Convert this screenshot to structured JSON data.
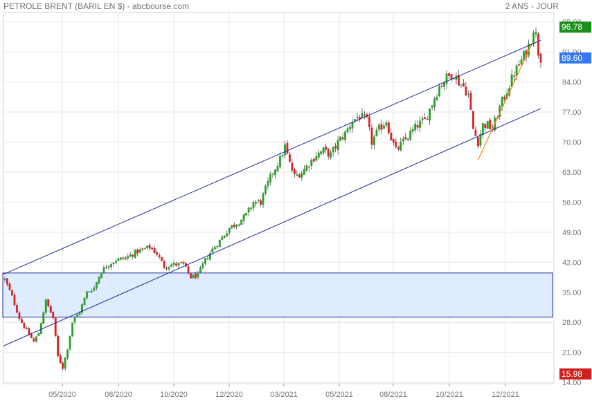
{
  "header": {
    "title": "PETROLE BRENT (BARIL EN $) - abcbourse.com",
    "period": "2 ANS - JOUR"
  },
  "colors": {
    "up": "#2ca02c",
    "down": "#d62728",
    "channel": "#1f2a9c",
    "trend": "#ff8c1a",
    "zone_fill": "#dbeafe",
    "zone_border": "#1f2a9c",
    "grid": "#e6e6e6",
    "badge_high": "#1a8f1a",
    "badge_last": "#3478f6",
    "badge_low": "#d0201e"
  },
  "chart_data": {
    "type": "candlestick",
    "title": "PETROLE BRENT (BARIL EN $)",
    "x_tick_labels": [
      "05/2020",
      "08/2020",
      "10/2020",
      "12/2020",
      "03/2021",
      "05/2021",
      "08/2021",
      "10/2021",
      "12/2021"
    ],
    "y_ticks": [
      14.0,
      21.0,
      28.0,
      35.0,
      42.0,
      49.0,
      56.0,
      63.0,
      70.0,
      77.0,
      84.0,
      91.0,
      98.0
    ],
    "y_tick_labels": [
      "14.00",
      "21.00",
      "28.00",
      "35.00",
      "42.00",
      "49.00",
      "56.00",
      "63.00",
      "70.00",
      "77.00",
      "84.00",
      "91.00",
      "98.00"
    ],
    "ylim": [
      13.7,
      100.2
    ],
    "price_path": [
      [
        0,
        38.0
      ],
      [
        3,
        34.0
      ],
      [
        6,
        29.0
      ],
      [
        9,
        26.0
      ],
      [
        12,
        23.5
      ],
      [
        14,
        25.5
      ],
      [
        17,
        33.0
      ],
      [
        20,
        29.0
      ],
      [
        22,
        20.0
      ],
      [
        24,
        17.5
      ],
      [
        26,
        22.0
      ],
      [
        28,
        28.0
      ],
      [
        31,
        30.5
      ],
      [
        34,
        35.0
      ],
      [
        37,
        36.0
      ],
      [
        40,
        40.0
      ],
      [
        43,
        41.5
      ],
      [
        46,
        42.5
      ],
      [
        50,
        43.0
      ],
      [
        55,
        44.5
      ],
      [
        60,
        45.5
      ],
      [
        63,
        44.0
      ],
      [
        66,
        41.0
      ],
      [
        70,
        41.5
      ],
      [
        74,
        41.5
      ],
      [
        77,
        38.5
      ],
      [
        80,
        39.0
      ],
      [
        83,
        42.5
      ],
      [
        86,
        45.0
      ],
      [
        89,
        47.0
      ],
      [
        93,
        50.0
      ],
      [
        97,
        51.5
      ],
      [
        100,
        53.0
      ],
      [
        103,
        56.0
      ],
      [
        106,
        56.0
      ],
      [
        108,
        59.0
      ],
      [
        111,
        63.0
      ],
      [
        114,
        66.0
      ],
      [
        116,
        69.0
      ],
      [
        118,
        65.0
      ],
      [
        120,
        62.0
      ],
      [
        123,
        63.0
      ],
      [
        126,
        65.0
      ],
      [
        129,
        67.0
      ],
      [
        132,
        68.0
      ],
      [
        135,
        67.0
      ],
      [
        138,
        70.0
      ],
      [
        141,
        72.0
      ],
      [
        144,
        75.0
      ],
      [
        147,
        76.0
      ],
      [
        150,
        75.0
      ],
      [
        152,
        70.0
      ],
      [
        155,
        73.0
      ],
      [
        158,
        75.0
      ],
      [
        160,
        71.0
      ],
      [
        162,
        68.0
      ],
      [
        165,
        70.0
      ],
      [
        168,
        72.0
      ],
      [
        171,
        74.0
      ],
      [
        174,
        75.0
      ],
      [
        177,
        79.0
      ],
      [
        180,
        83.0
      ],
      [
        183,
        85.0
      ],
      [
        186,
        86.0
      ],
      [
        188,
        84.0
      ],
      [
        190,
        83.0
      ],
      [
        192,
        81.0
      ],
      [
        194,
        73.0
      ],
      [
        196,
        70.0
      ],
      [
        198,
        74.0
      ],
      [
        200,
        74.0
      ],
      [
        202,
        73.0
      ],
      [
        205,
        78.0
      ],
      [
        208,
        82.0
      ],
      [
        211,
        86.0
      ],
      [
        214,
        89.0
      ],
      [
        216,
        91.0
      ],
      [
        218,
        94.0
      ],
      [
        219,
        96.5
      ],
      [
        220,
        95.0
      ],
      [
        221,
        91.0
      ],
      [
        222,
        89.6
      ]
    ],
    "sessions": 223,
    "last": 89.6,
    "badges": [
      {
        "label": "96.78",
        "value": 96.78,
        "role": "high"
      },
      {
        "label": "89.60",
        "value": 89.6,
        "role": "last"
      },
      {
        "label": "15.98",
        "value": 15.98,
        "role": "low"
      }
    ],
    "channel_lines": [
      {
        "from": [
          0,
          39.2
        ],
        "to": [
          222,
          93.7
        ]
      },
      {
        "from": [
          0,
          22.5
        ],
        "to": [
          222,
          77.8
        ]
      }
    ],
    "support_zone": {
      "x_from": 0,
      "x_to": 222,
      "y_from": 29.2,
      "y_to": 39.5
    },
    "trend_line": {
      "from": [
        196,
        65.8
      ],
      "to": [
        218,
        92.5
      ]
    },
    "grid": true
  }
}
